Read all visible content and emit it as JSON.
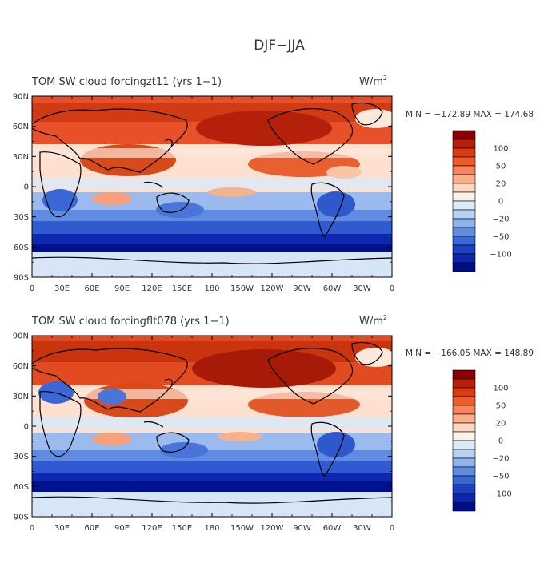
{
  "figure_title": "DJF−JJA",
  "panels": [
    {
      "title": "TOM SW cloud forcingzt11 (yrs 1−1)",
      "units": "W/m",
      "units_sup": "2",
      "stats": "MIN = −172.89  MAX = 174.68"
    },
    {
      "title": "TOM SW cloud forcingflt078 (yrs 1−1)",
      "units": "W/m",
      "units_sup": "2",
      "stats": "MIN = −166.05  MAX = 148.89"
    }
  ],
  "lat_ticks": [
    "90N",
    "60N",
    "30N",
    "0",
    "30S",
    "60S",
    "90S"
  ],
  "lon_ticks": [
    "0",
    "30E",
    "60E",
    "90E",
    "120E",
    "150E",
    "180",
    "150W",
    "120W",
    "90W",
    "60W",
    "30W",
    "0"
  ],
  "colorbar": {
    "labels": [
      "100",
      "50",
      "20",
      "0",
      "−20",
      "−50",
      "−100"
    ],
    "colors": [
      "#8b0000",
      "#b81e08",
      "#d93b12",
      "#ef5a2a",
      "#f7845a",
      "#fbae8c",
      "#fdd6c0",
      "#fff1e6",
      "#dceaf9",
      "#b8d2f2",
      "#8fb3ea",
      "#5f8ce0",
      "#3a66d6",
      "#1c40c4",
      "#0d25a8",
      "#000e8a"
    ]
  }
}
